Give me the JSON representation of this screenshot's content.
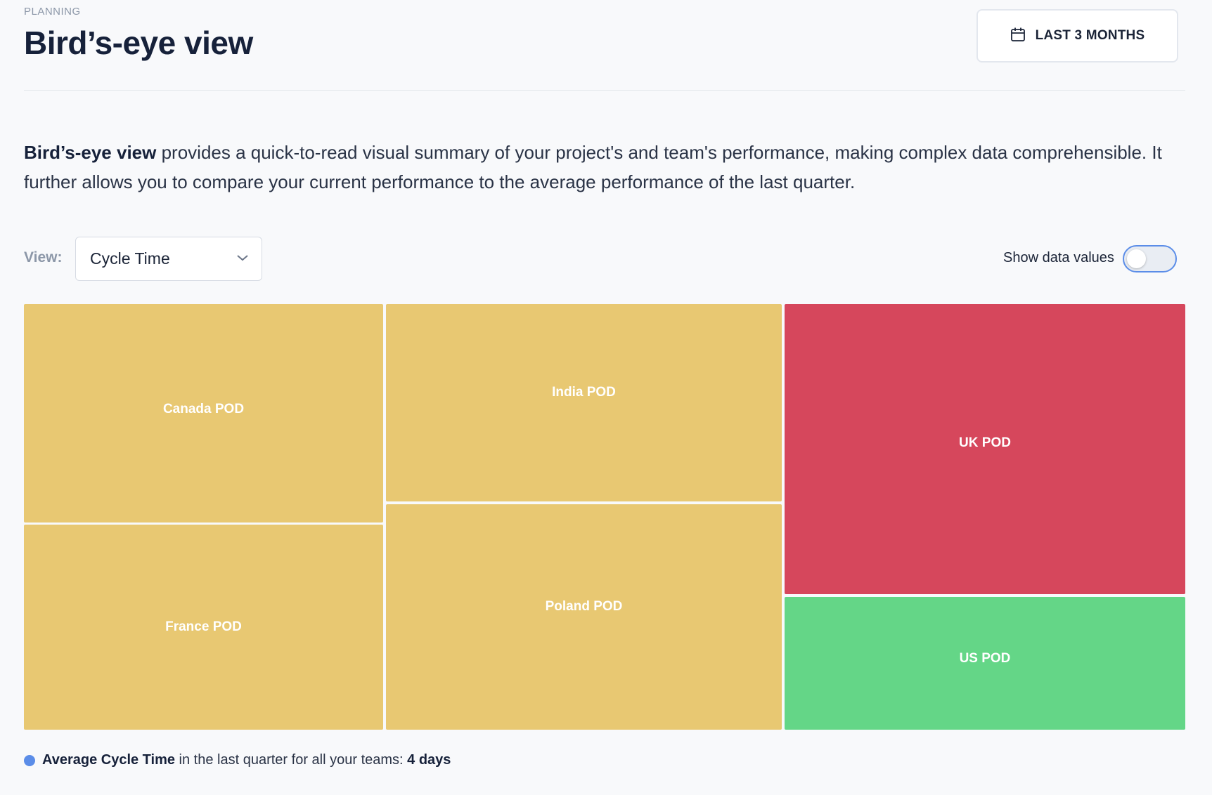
{
  "header": {
    "eyebrow": "PLANNING",
    "title": "Bird’s-eye view",
    "range_button": {
      "label": "LAST 3 MONTHS",
      "icon": "calendar-icon"
    }
  },
  "intro": {
    "bold": "Bird’s-eye view",
    "text": " provides a quick-to-read visual summary of your project's and team's performance, making complex data comprehensible. It further allows you to compare your current performance to the average performance of the last quarter."
  },
  "controls": {
    "view_label": "View:",
    "view_value": "Cycle Time",
    "show_values_label": "Show data values",
    "show_values_on": false
  },
  "colors": {
    "warning": "#e8c872",
    "bad": "#d6475c",
    "good": "#64d687",
    "accent": "#5b8de8"
  },
  "treemap": {
    "tiles": [
      {
        "label": "Canada POD",
        "status": "warning"
      },
      {
        "label": "France POD",
        "status": "warning"
      },
      {
        "label": "India POD",
        "status": "warning"
      },
      {
        "label": "Poland POD",
        "status": "warning"
      },
      {
        "label": "UK POD",
        "status": "bad"
      },
      {
        "label": "US POD",
        "status": "good"
      }
    ]
  },
  "footnote": {
    "metric": "Average Cycle Time",
    "text": " in the last quarter for all your teams: ",
    "value": "4 days"
  }
}
